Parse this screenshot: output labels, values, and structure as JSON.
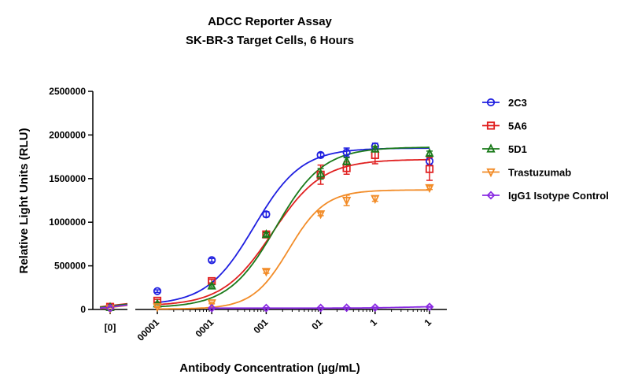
{
  "chart_data": {
    "type": "scatter",
    "title": "ADCC Reporter Assay",
    "subtitle": "SK-BR-3 Target Cells, 6 Hours",
    "xlabel": "Antibody Concentration (µg/mL)",
    "ylabel": "Relative Light Units (RLU)",
    "x_scale": "log",
    "x_ticks": [
      {
        "x": 0.0001,
        "label": "00001"
      },
      {
        "x": 0.001,
        "label": "0001"
      },
      {
        "x": 0.01,
        "label": "001"
      },
      {
        "x": 0.1,
        "label": "01"
      },
      {
        "x": 1,
        "label": "1"
      },
      {
        "x": 10,
        "label": "1"
      }
    ],
    "x_zero_label": "[0]",
    "y_ticks": [
      0,
      500000,
      1000000,
      1500000,
      2000000,
      2500000
    ],
    "y_tick_labels": [
      "0",
      "500000",
      "1000000",
      "1500000",
      "2000000",
      "2500000"
    ],
    "ylim": [
      0,
      2500000
    ],
    "legend_position": "right",
    "series": [
      {
        "name": "2C3",
        "color": "#1f1fe0",
        "marker": "circle",
        "zero": {
          "y": 20000,
          "err": 5000
        },
        "points": [
          {
            "x": 0.0001,
            "y": 210000,
            "err": 15000
          },
          {
            "x": 0.001,
            "y": 565000,
            "err": 20000
          },
          {
            "x": 0.01,
            "y": 1090000,
            "err": 30000
          },
          {
            "x": 0.1,
            "y": 1770000,
            "err": 25000
          },
          {
            "x": 0.3,
            "y": 1800000,
            "err": 50000
          },
          {
            "x": 1,
            "y": 1870000,
            "err": 35000
          },
          {
            "x": 10,
            "y": 1700000,
            "err": 45000
          }
        ],
        "fit": {
          "bottom": 50000,
          "top": 1850000,
          "ec50": 0.006,
          "hill": 1.0
        }
      },
      {
        "name": "5A6",
        "color": "#e02020",
        "marker": "square",
        "zero": {
          "y": 30000,
          "err": 5000
        },
        "points": [
          {
            "x": 0.0001,
            "y": 100000,
            "err": 15000
          },
          {
            "x": 0.001,
            "y": 325000,
            "err": 20000
          },
          {
            "x": 0.01,
            "y": 860000,
            "err": 25000
          },
          {
            "x": 0.1,
            "y": 1545000,
            "err": 110000
          },
          {
            "x": 0.3,
            "y": 1620000,
            "err": 70000
          },
          {
            "x": 1,
            "y": 1770000,
            "err": 100000
          },
          {
            "x": 10,
            "y": 1610000,
            "err": 130000
          }
        ],
        "fit": {
          "bottom": 40000,
          "top": 1720000,
          "ec50": 0.013,
          "hill": 0.95
        }
      },
      {
        "name": "5D1",
        "color": "#1a7a1a",
        "marker": "triangle",
        "zero": {
          "y": 25000,
          "err": 5000
        },
        "points": [
          {
            "x": 0.0001,
            "y": 65000,
            "err": 10000
          },
          {
            "x": 0.001,
            "y": 270000,
            "err": 15000
          },
          {
            "x": 0.01,
            "y": 860000,
            "err": 20000
          },
          {
            "x": 0.1,
            "y": 1555000,
            "err": 60000
          },
          {
            "x": 0.3,
            "y": 1700000,
            "err": 40000
          },
          {
            "x": 1,
            "y": 1840000,
            "err": 30000
          },
          {
            "x": 10,
            "y": 1790000,
            "err": 25000
          }
        ],
        "fit": {
          "bottom": 20000,
          "top": 1860000,
          "ec50": 0.015,
          "hill": 1.0
        }
      },
      {
        "name": "Trastuzumab",
        "color": "#f28c28",
        "marker": "triangle-down",
        "zero": {
          "y": 10000,
          "err": 4000
        },
        "points": [
          {
            "x": 0.0001,
            "y": 30000,
            "err": 5000
          },
          {
            "x": 0.001,
            "y": 75000,
            "err": 10000
          },
          {
            "x": 0.01,
            "y": 435000,
            "err": 20000
          },
          {
            "x": 0.1,
            "y": 1095000,
            "err": 20000
          },
          {
            "x": 0.3,
            "y": 1250000,
            "err": 60000
          },
          {
            "x": 1,
            "y": 1270000,
            "err": 30000
          },
          {
            "x": 10,
            "y": 1395000,
            "err": 20000
          }
        ],
        "fit": {
          "bottom": 5000,
          "top": 1370000,
          "ec50": 0.026,
          "hill": 1.3
        }
      },
      {
        "name": "IgG1 Isotype Control",
        "color": "#8a2be2",
        "marker": "diamond",
        "zero": {
          "y": 15000,
          "err": 3000
        },
        "points": [
          {
            "x": 0.001,
            "y": 15000,
            "err": 3000
          },
          {
            "x": 0.01,
            "y": 17000,
            "err": 3000
          },
          {
            "x": 0.1,
            "y": 18000,
            "err": 3000
          },
          {
            "x": 0.3,
            "y": 20000,
            "err": 3000
          },
          {
            "x": 1,
            "y": 22000,
            "err": 3000
          },
          {
            "x": 10,
            "y": 30000,
            "err": 4000
          }
        ],
        "fit": {
          "bottom": 15000,
          "top": 40000,
          "ec50": 5,
          "hill": 1.0
        }
      }
    ]
  }
}
